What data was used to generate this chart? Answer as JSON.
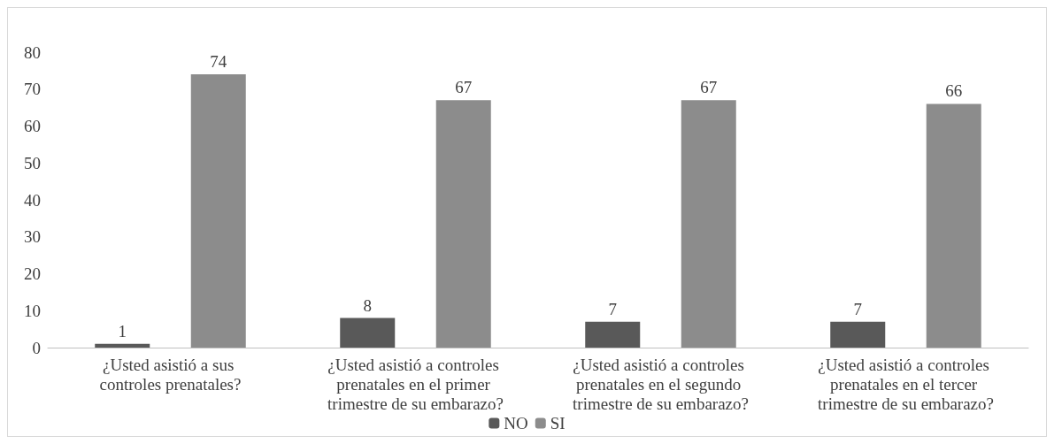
{
  "chart_data": {
    "type": "bar",
    "categories": [
      "¿Usted asistió a sus controles prenatales?",
      "¿Usted asistió a controles prenatales en el primer trimestre de su embarazo?",
      "¿Usted asistió a controles prenatales en el segundo trimestre de su embarazo?",
      "¿Usted asistió a controles prenatales en el tercer trimestre de su embarazo?"
    ],
    "series": [
      {
        "name": "NO",
        "color": "#595959",
        "values": [
          1,
          8,
          7,
          7
        ]
      },
      {
        "name": "SI",
        "color": "#8c8c8c",
        "values": [
          74,
          67,
          67,
          66
        ]
      }
    ],
    "ylim": [
      0,
      80
    ],
    "yticks": [
      0,
      10,
      20,
      30,
      40,
      50,
      60,
      70,
      80
    ],
    "grid": false,
    "legend": "bottom",
    "data_labels": true
  }
}
